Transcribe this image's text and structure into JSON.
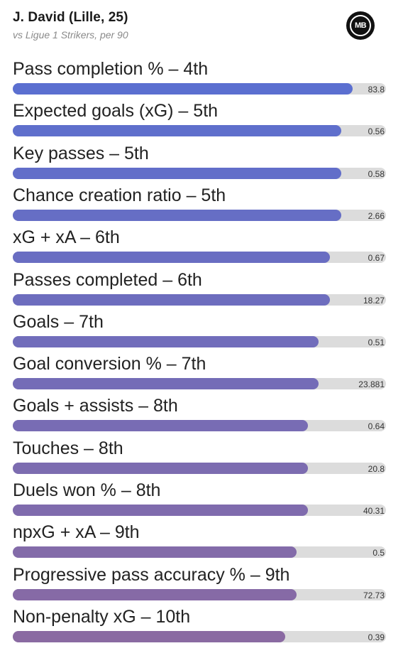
{
  "header": {
    "title": "J. David (Lille, 25)",
    "subtitle": "vs Ligue 1 Strikers, per 90",
    "logo_text": "MB"
  },
  "chart_data": {
    "type": "bar",
    "orientation": "horizontal",
    "grid": false,
    "bar_color_start": "#5b6fd0",
    "bar_color_end": "#8a6aa2",
    "track_color": "#dcdcdc",
    "categories": [
      "Pass completion % – 4th",
      "Expected goals (xG) – 5th",
      "Key passes – 5th",
      "Chance creation ratio – 5th",
      "xG + xA – 6th",
      "Passes completed – 6th",
      "Goals – 7th",
      "Goal conversion % – 7th",
      "Goals + assists – 8th",
      "Touches – 8th",
      "Duels won % – 8th",
      "npxG + xA – 9th",
      "Progressive pass accuracy % – 9th",
      "Non-penalty xG – 10th"
    ],
    "values": [
      "83.8",
      "0.56",
      "0.58",
      "2.66",
      "0.67",
      "18.27",
      "0.51",
      "23.881",
      "0.64",
      "20.8",
      "40.31",
      "0.5",
      "72.73",
      "0.39"
    ],
    "fill_fraction": [
      0.91,
      0.88,
      0.88,
      0.88,
      0.85,
      0.85,
      0.82,
      0.82,
      0.79,
      0.79,
      0.79,
      0.76,
      0.76,
      0.73
    ]
  }
}
